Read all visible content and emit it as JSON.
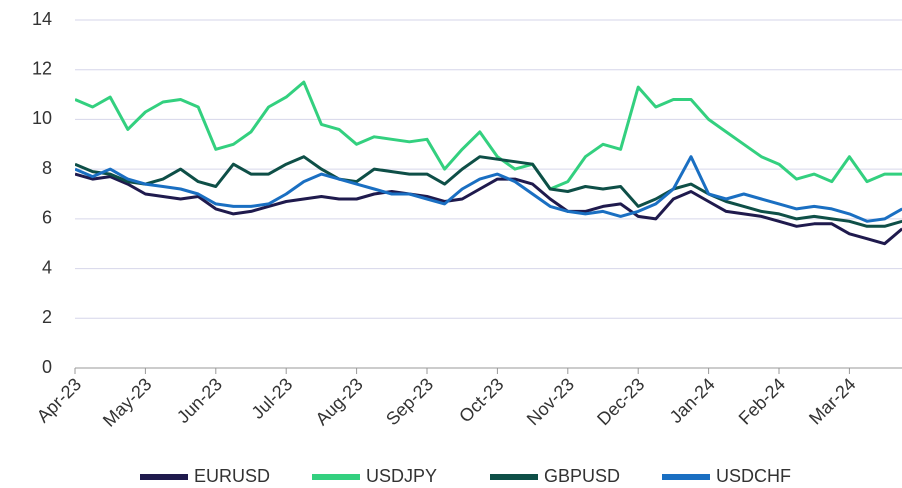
{
  "chart_data": {
    "type": "line",
    "categories": [
      "Apr-23",
      null,
      null,
      null,
      "May-23",
      null,
      null,
      null,
      "Jun-23",
      null,
      null,
      null,
      "Jul-23",
      null,
      null,
      null,
      "Aug-23",
      null,
      null,
      null,
      "Sep-23",
      null,
      null,
      null,
      "Oct-23",
      null,
      null,
      null,
      "Nov-23",
      null,
      null,
      null,
      "Dec-23",
      null,
      null,
      null,
      "Jan-24",
      null,
      null,
      null,
      "Feb-24",
      null,
      null,
      null,
      "Mar-24",
      null,
      null,
      null
    ],
    "series": [
      {
        "name": "EURUSD",
        "color": "#1f1a4d",
        "values": [
          7.8,
          7.6,
          7.7,
          7.4,
          7.0,
          6.9,
          6.8,
          6.9,
          6.4,
          6.2,
          6.3,
          6.5,
          6.7,
          6.8,
          6.9,
          6.8,
          6.8,
          7.0,
          7.1,
          7.0,
          6.9,
          6.7,
          6.8,
          7.2,
          7.6,
          7.6,
          7.4,
          6.8,
          6.3,
          6.3,
          6.5,
          6.6,
          6.1,
          6.0,
          6.8,
          7.1,
          6.7,
          6.3,
          6.2,
          6.1,
          5.9,
          5.7,
          5.8,
          5.8,
          5.4,
          5.2,
          5.0,
          5.6
        ]
      },
      {
        "name": "USDJPY",
        "color": "#33d07f",
        "values": [
          10.8,
          10.5,
          10.9,
          9.6,
          10.3,
          10.7,
          10.8,
          10.5,
          8.8,
          9.0,
          9.5,
          10.5,
          10.9,
          11.5,
          9.8,
          9.6,
          9.0,
          9.3,
          9.2,
          9.1,
          9.2,
          8.0,
          8.8,
          9.5,
          8.5,
          8.0,
          8.2,
          7.2,
          7.5,
          8.5,
          9.0,
          8.8,
          11.3,
          10.5,
          10.8,
          10.8,
          10.0,
          9.5,
          9.0,
          8.5,
          8.2,
          7.6,
          7.8,
          7.5,
          8.5,
          7.5,
          7.8,
          7.8
        ]
      },
      {
        "name": "GBPUSD",
        "color": "#0e4f47",
        "values": [
          8.2,
          7.9,
          7.8,
          7.5,
          7.4,
          7.6,
          8.0,
          7.5,
          7.3,
          8.2,
          7.8,
          7.8,
          8.2,
          8.5,
          8.0,
          7.6,
          7.5,
          8.0,
          7.9,
          7.8,
          7.8,
          7.4,
          8.0,
          8.5,
          8.4,
          8.3,
          8.2,
          7.2,
          7.1,
          7.3,
          7.2,
          7.3,
          6.5,
          6.8,
          7.2,
          7.4,
          7.0,
          6.7,
          6.5,
          6.3,
          6.2,
          6.0,
          6.1,
          6.0,
          5.9,
          5.7,
          5.7,
          5.9
        ]
      },
      {
        "name": "USDCHF",
        "color": "#1a6fc2",
        "values": [
          8.0,
          7.7,
          8.0,
          7.6,
          7.4,
          7.3,
          7.2,
          7.0,
          6.6,
          6.5,
          6.5,
          6.6,
          7.0,
          7.5,
          7.8,
          7.6,
          7.4,
          7.2,
          7.0,
          7.0,
          6.8,
          6.6,
          7.2,
          7.6,
          7.8,
          7.5,
          7.0,
          6.5,
          6.3,
          6.2,
          6.3,
          6.1,
          6.3,
          6.6,
          7.2,
          8.5,
          7.0,
          6.8,
          7.0,
          6.8,
          6.6,
          6.4,
          6.5,
          6.4,
          6.2,
          5.9,
          6.0,
          6.4
        ]
      }
    ],
    "ylim": [
      0,
      14
    ],
    "yticks": [
      0,
      2,
      4,
      6,
      8,
      10,
      12,
      14
    ],
    "grid": true,
    "legend": "bottom"
  }
}
